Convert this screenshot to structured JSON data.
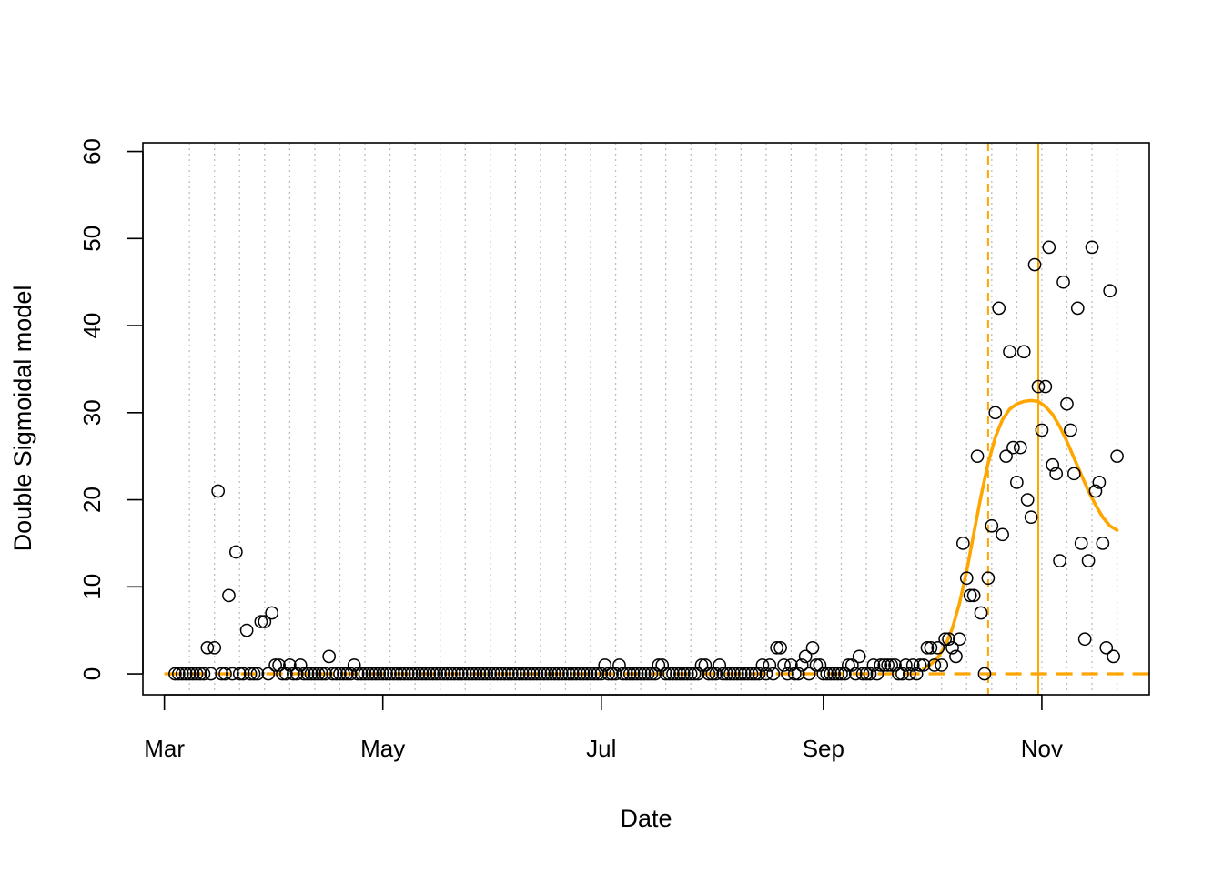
{
  "chart_data": {
    "type": "scatter",
    "title": "",
    "xlabel": "Date",
    "ylabel": "Double Sigmoidal model",
    "xlim": [
      "2020-02-24",
      "2020-12-01"
    ],
    "ylim": [
      -2.4,
      61
    ],
    "x_ticks": [
      {
        "label": "Mar",
        "date": "2020-03-01"
      },
      {
        "label": "May",
        "date": "2020-05-01"
      },
      {
        "label": "Jul",
        "date": "2020-07-01"
      },
      {
        "label": "Sep",
        "date": "2020-09-01"
      },
      {
        "label": "Nov",
        "date": "2020-11-01"
      }
    ],
    "y_ticks": [
      0,
      10,
      20,
      30,
      40,
      50,
      60
    ],
    "grid": "vertical dotted weekly lines",
    "colors": {
      "model": "#ffa500",
      "points": "#000000",
      "grid": "#bebebe"
    },
    "observed": {
      "zero_runs": [
        [
          "2020-03-04",
          "2020-04-27"
        ],
        [
          "2020-04-27",
          "2020-06-30"
        ],
        [
          "2020-07-01",
          "2020-09-30"
        ]
      ],
      "points": [
        [
          "2020-03-13",
          3
        ],
        [
          "2020-03-15",
          3
        ],
        [
          "2020-03-16",
          21
        ],
        [
          "2020-03-19",
          9
        ],
        [
          "2020-03-21",
          14
        ],
        [
          "2020-03-24",
          5
        ],
        [
          "2020-03-28",
          6
        ],
        [
          "2020-03-29",
          6
        ],
        [
          "2020-03-31",
          7
        ],
        [
          "2020-04-01",
          1
        ],
        [
          "2020-04-02",
          1
        ],
        [
          "2020-04-05",
          1
        ],
        [
          "2020-04-08",
          1
        ],
        [
          "2020-04-16",
          2
        ],
        [
          "2020-04-23",
          1
        ],
        [
          "2020-07-02",
          1
        ],
        [
          "2020-07-06",
          1
        ],
        [
          "2020-07-17",
          1
        ],
        [
          "2020-07-18",
          1
        ],
        [
          "2020-07-29",
          1
        ],
        [
          "2020-07-30",
          1
        ],
        [
          "2020-08-03",
          1
        ],
        [
          "2020-08-15",
          1
        ],
        [
          "2020-08-17",
          1
        ],
        [
          "2020-08-19",
          3
        ],
        [
          "2020-08-20",
          3
        ],
        [
          "2020-08-21",
          1
        ],
        [
          "2020-08-23",
          1
        ],
        [
          "2020-08-26",
          1
        ],
        [
          "2020-08-27",
          2
        ],
        [
          "2020-08-29",
          3
        ],
        [
          "2020-08-30",
          1
        ],
        [
          "2020-08-31",
          1
        ],
        [
          "2020-09-08",
          1
        ],
        [
          "2020-09-09",
          1
        ],
        [
          "2020-09-11",
          2
        ],
        [
          "2020-09-15",
          1
        ],
        [
          "2020-09-17",
          1
        ],
        [
          "2020-09-18",
          1
        ],
        [
          "2020-09-19",
          1
        ],
        [
          "2020-09-20",
          1
        ],
        [
          "2020-09-21",
          1
        ],
        [
          "2020-09-24",
          1
        ],
        [
          "2020-09-26",
          1
        ],
        [
          "2020-09-28",
          1
        ],
        [
          "2020-09-29",
          1
        ],
        [
          "2020-09-30",
          3
        ],
        [
          "2020-10-01",
          3
        ],
        [
          "2020-10-02",
          1
        ],
        [
          "2020-10-03",
          3
        ],
        [
          "2020-10-04",
          1
        ],
        [
          "2020-10-05",
          4
        ],
        [
          "2020-10-06",
          4
        ],
        [
          "2020-10-07",
          3
        ],
        [
          "2020-10-08",
          2
        ],
        [
          "2020-10-09",
          4
        ],
        [
          "2020-10-10",
          15
        ],
        [
          "2020-10-11",
          11
        ],
        [
          "2020-10-12",
          9
        ],
        [
          "2020-10-13",
          9
        ],
        [
          "2020-10-14",
          25
        ],
        [
          "2020-10-15",
          7
        ],
        [
          "2020-10-16",
          0
        ],
        [
          "2020-10-17",
          11
        ],
        [
          "2020-10-18",
          17
        ],
        [
          "2020-10-19",
          30
        ],
        [
          "2020-10-20",
          42
        ],
        [
          "2020-10-21",
          16
        ],
        [
          "2020-10-22",
          25
        ],
        [
          "2020-10-23",
          37
        ],
        [
          "2020-10-24",
          26
        ],
        [
          "2020-10-25",
          22
        ],
        [
          "2020-10-26",
          26
        ],
        [
          "2020-10-27",
          37
        ],
        [
          "2020-10-28",
          20
        ],
        [
          "2020-10-29",
          18
        ],
        [
          "2020-10-30",
          47
        ],
        [
          "2020-10-31",
          33
        ],
        [
          "2020-11-01",
          28
        ],
        [
          "2020-11-02",
          33
        ],
        [
          "2020-11-03",
          49
        ],
        [
          "2020-11-04",
          24
        ],
        [
          "2020-11-05",
          23
        ],
        [
          "2020-11-06",
          13
        ],
        [
          "2020-11-07",
          45
        ],
        [
          "2020-11-08",
          31
        ],
        [
          "2020-11-09",
          28
        ],
        [
          "2020-11-10",
          23
        ],
        [
          "2020-11-11",
          42
        ],
        [
          "2020-11-12",
          15
        ],
        [
          "2020-11-13",
          4
        ],
        [
          "2020-11-14",
          13
        ],
        [
          "2020-11-15",
          49
        ],
        [
          "2020-11-16",
          21
        ],
        [
          "2020-11-17",
          22
        ],
        [
          "2020-11-18",
          15
        ],
        [
          "2020-11-19",
          3
        ],
        [
          "2020-11-20",
          44
        ],
        [
          "2020-11-21",
          2
        ],
        [
          "2020-11-22",
          25
        ]
      ]
    },
    "model_curve": [
      [
        "2020-09-29",
        0.6
      ],
      [
        "2020-10-01",
        1.1
      ],
      [
        "2020-10-03",
        1.9
      ],
      [
        "2020-10-05",
        3.2
      ],
      [
        "2020-10-07",
        5.2
      ],
      [
        "2020-10-09",
        8.1
      ],
      [
        "2020-10-11",
        11.8
      ],
      [
        "2020-10-13",
        16.1
      ],
      [
        "2020-10-15",
        20.4
      ],
      [
        "2020-10-17",
        24.2
      ],
      [
        "2020-10-19",
        27.2
      ],
      [
        "2020-10-21",
        29.2
      ],
      [
        "2020-10-23",
        30.4
      ],
      [
        "2020-10-25",
        31.0
      ],
      [
        "2020-10-27",
        31.3
      ],
      [
        "2020-10-29",
        31.4
      ],
      [
        "2020-10-31",
        31.3
      ],
      [
        "2020-11-02",
        30.7
      ],
      [
        "2020-11-04",
        29.8
      ],
      [
        "2020-11-06",
        28.4
      ],
      [
        "2020-11-08",
        26.7
      ],
      [
        "2020-11-10",
        24.8
      ],
      [
        "2020-11-12",
        22.9
      ],
      [
        "2020-11-14",
        21.0
      ],
      [
        "2020-11-16",
        19.4
      ],
      [
        "2020-11-18",
        18.0
      ],
      [
        "2020-11-20",
        17.0
      ],
      [
        "2020-11-22",
        16.5
      ]
    ],
    "baseline": {
      "y": 0,
      "style": "dashed",
      "from": "2020-03-01",
      "to": "2020-12-01"
    },
    "vlines": [
      {
        "date": "2020-10-17",
        "style": "dashed"
      },
      {
        "date": "2020-10-31",
        "style": "solid"
      }
    ]
  }
}
